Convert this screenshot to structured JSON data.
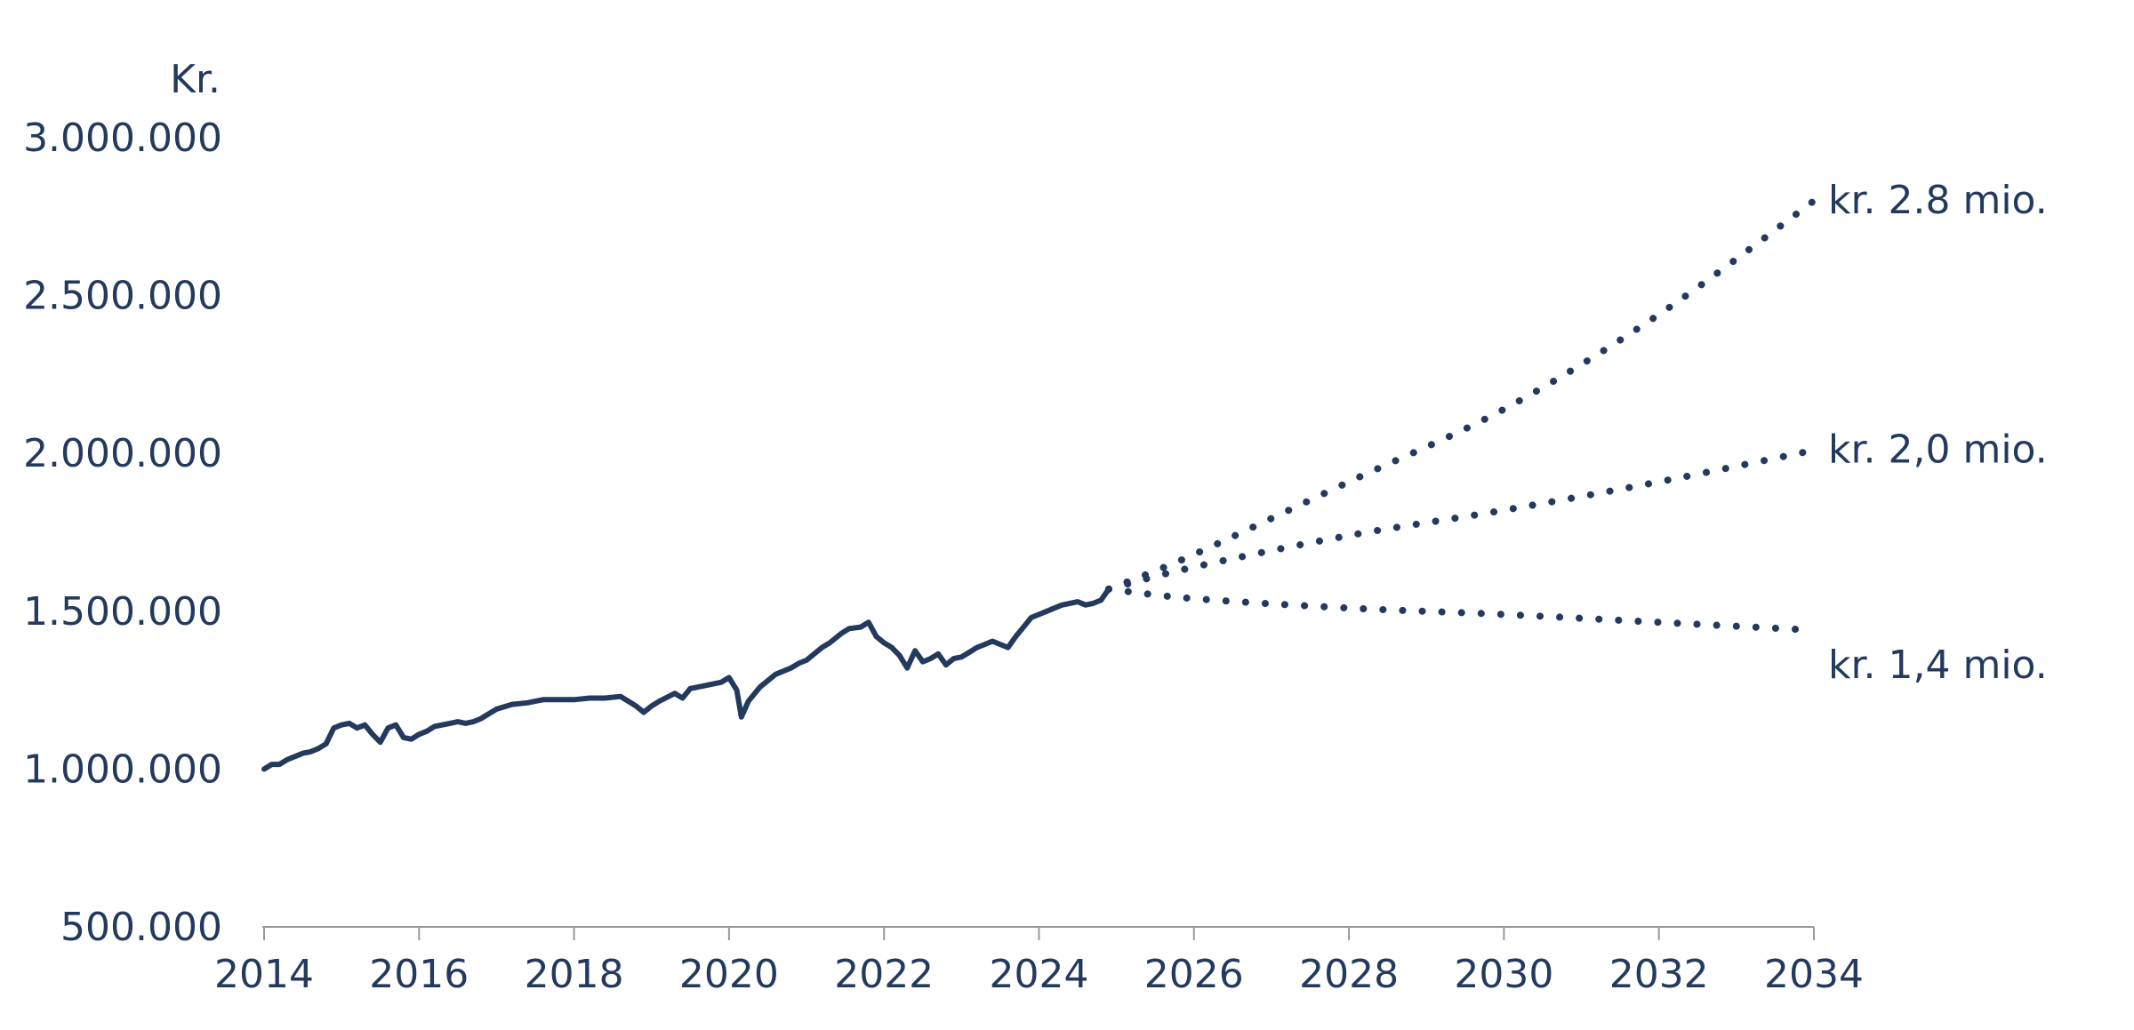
{
  "chart_data": {
    "type": "line",
    "title": "",
    "ylabel": "Kr.",
    "xlabel": "",
    "xlim": [
      2014,
      2034
    ],
    "ylim": [
      500000,
      3000000
    ],
    "x_ticks": [
      2014,
      2016,
      2018,
      2020,
      2022,
      2024,
      2026,
      2028,
      2030,
      2032,
      2034
    ],
    "x_tick_labels": [
      "2014",
      "2016",
      "2018",
      "2020",
      "2022",
      "2024",
      "2026",
      "2028",
      "2030",
      "2032",
      "2034"
    ],
    "y_ticks": [
      500000,
      1000000,
      1500000,
      2000000,
      2500000,
      3000000
    ],
    "y_tick_labels": [
      "500.000",
      "1.000.000",
      "1.500.000",
      "2.000.000",
      "2.500.000",
      "3.000.000"
    ],
    "grid": false,
    "legend": "none",
    "color": "#233a5e",
    "historical": {
      "style": "solid",
      "x": [
        2014.0,
        2014.1,
        2014.2,
        2014.3,
        2014.4,
        2014.5,
        2014.6,
        2014.7,
        2014.8,
        2014.9,
        2015.0,
        2015.1,
        2015.2,
        2015.3,
        2015.4,
        2015.5,
        2015.6,
        2015.7,
        2015.8,
        2015.9,
        2016.0,
        2016.1,
        2016.2,
        2016.3,
        2016.4,
        2016.5,
        2016.6,
        2016.7,
        2016.8,
        2016.9,
        2017.0,
        2017.2,
        2017.4,
        2017.6,
        2017.8,
        2018.0,
        2018.2,
        2018.4,
        2018.6,
        2018.8,
        2018.9,
        2019.0,
        2019.1,
        2019.3,
        2019.4,
        2019.5,
        2019.7,
        2019.9,
        2020.0,
        2020.1,
        2020.16,
        2020.25,
        2020.4,
        2020.6,
        2020.8,
        2020.9,
        2021.0,
        2021.2,
        2021.3,
        2021.45,
        2021.55,
        2021.7,
        2021.8,
        2021.9,
        2022.0,
        2022.1,
        2022.2,
        2022.3,
        2022.4,
        2022.5,
        2022.6,
        2022.7,
        2022.8,
        2022.9,
        2023.0,
        2023.1,
        2023.2,
        2023.3,
        2023.4,
        2023.5,
        2023.6,
        2023.7,
        2023.8,
        2023.9,
        2024.0,
        2024.1,
        2024.2,
        2024.3,
        2024.4,
        2024.5,
        2024.6,
        2024.7,
        2024.8,
        2024.9
      ],
      "y": [
        1000000,
        1015000,
        1015000,
        1030000,
        1040000,
        1050000,
        1055000,
        1065000,
        1080000,
        1130000,
        1140000,
        1145000,
        1130000,
        1140000,
        1110000,
        1085000,
        1130000,
        1140000,
        1100000,
        1095000,
        1110000,
        1120000,
        1135000,
        1140000,
        1145000,
        1150000,
        1145000,
        1150000,
        1160000,
        1175000,
        1190000,
        1205000,
        1210000,
        1220000,
        1220000,
        1220000,
        1225000,
        1225000,
        1230000,
        1200000,
        1180000,
        1200000,
        1215000,
        1240000,
        1225000,
        1255000,
        1265000,
        1275000,
        1290000,
        1250000,
        1165000,
        1215000,
        1260000,
        1300000,
        1320000,
        1335000,
        1345000,
        1385000,
        1400000,
        1430000,
        1445000,
        1450000,
        1465000,
        1420000,
        1400000,
        1385000,
        1360000,
        1320000,
        1375000,
        1340000,
        1350000,
        1365000,
        1330000,
        1350000,
        1355000,
        1370000,
        1385000,
        1395000,
        1405000,
        1395000,
        1385000,
        1420000,
        1450000,
        1480000,
        1490000,
        1500000,
        1510000,
        1520000,
        1525000,
        1530000,
        1520000,
        1525000,
        1535000,
        1570000
      ]
    },
    "series": [
      {
        "style": "dotted",
        "x": [
          2024.9,
          2026,
          2028,
          2030,
          2032,
          2034
        ],
        "y": [
          1570000,
          1680000,
          1910000,
          2140000,
          2440000,
          2800000
        ],
        "end_label": "kr. 2.8 mio."
      },
      {
        "style": "dotted",
        "x": [
          2024.9,
          2026,
          2028,
          2030,
          2032,
          2034
        ],
        "y": [
          1570000,
          1640000,
          1740000,
          1820000,
          1910000,
          2010000
        ],
        "end_label": "kr. 2,0 mio."
      },
      {
        "style": "dotted",
        "x": [
          2024.9,
          2026,
          2028,
          2030,
          2032,
          2034
        ],
        "y": [
          1570000,
          1540000,
          1510000,
          1490000,
          1465000,
          1440000
        ],
        "end_label": "kr. 1,4 mio."
      }
    ]
  }
}
